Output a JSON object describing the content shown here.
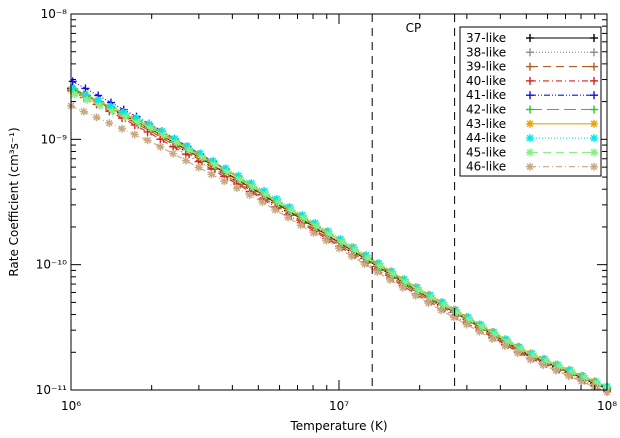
{
  "chart_data": {
    "type": "line",
    "title": "",
    "xlabel": "Temperature (K)",
    "ylabel": "Rate Coefficient (cm³s⁻¹)",
    "xscale": "log",
    "yscale": "log",
    "xlim": [
      1000000,
      100000000
    ],
    "ylim": [
      1e-11,
      1e-08
    ],
    "x_ticks": [
      {
        "value": 1000000,
        "label": "10⁶"
      },
      {
        "value": 10000000,
        "label": "10⁷"
      },
      {
        "value": 100000000,
        "label": "10⁸"
      }
    ],
    "y_ticks": [
      {
        "value": 1e-11,
        "label": "10⁻¹¹"
      },
      {
        "value": 1e-10,
        "label": "10⁻¹⁰"
      },
      {
        "value": 1e-09,
        "label": "10⁻⁹"
      },
      {
        "value": 1e-08,
        "label": "10⁻⁸"
      }
    ],
    "grid": false,
    "legend_position": "top-right",
    "annotations": [
      {
        "text": "CP",
        "type": "vertical-lines",
        "x": [
          13300000,
          27000000
        ],
        "style": "dashed",
        "color": "#000000"
      }
    ],
    "x": [
      1000000,
      2000000,
      5000000,
      10000000,
      20000000,
      50000000,
      100000000
    ],
    "series": [
      {
        "name": "37-like",
        "color": "#000000",
        "dash": "",
        "marker": "plus",
        "values": [
          2.55e-09,
          1.2e-09,
          3.8e-10,
          1.5e-10,
          6e-11,
          1.95e-11,
          1.02e-11
        ]
      },
      {
        "name": "38-like",
        "color": "#8c8c8c",
        "dash": "1,2",
        "marker": "plus",
        "values": [
          2.6e-09,
          1.22e-09,
          3.85e-10,
          1.53e-10,
          6.1e-11,
          1.98e-11,
          1.04e-11
        ]
      },
      {
        "name": "39-like",
        "color": "#b35a1e",
        "dash": "8,5",
        "marker": "plus",
        "values": [
          2.5e-09,
          1.15e-09,
          3.6e-10,
          1.44e-10,
          5.8e-11,
          1.9e-11,
          1e-11
        ]
      },
      {
        "name": "40-like",
        "color": "#d62020",
        "dash": "6,3,1,3",
        "marker": "plus",
        "values": [
          2.45e-09,
          1.1e-09,
          3.5e-10,
          1.4e-10,
          5.6e-11,
          1.85e-11,
          9.8e-12
        ]
      },
      {
        "name": "41-like",
        "color": "#1010e0",
        "dash": "6,2,1,2,1,2",
        "marker": "plus",
        "values": [
          2.95e-09,
          1.3e-09,
          4e-10,
          1.57e-10,
          6.2e-11,
          2e-11,
          1.05e-11
        ]
      },
      {
        "name": "42-like",
        "color": "#22cc22",
        "dash": "12,5",
        "marker": "plus",
        "values": [
          2.6e-09,
          1.24e-09,
          3.9e-10,
          1.55e-10,
          6.1e-11,
          1.98e-11,
          1.04e-11
        ]
      },
      {
        "name": "43-like",
        "color": "#f0a000",
        "dash": "",
        "marker": "asterisk",
        "values": [
          2.5e-09,
          1.26e-09,
          4e-10,
          1.58e-10,
          6.3e-11,
          2.02e-11,
          1.06e-11
        ]
      },
      {
        "name": "44-like",
        "color": "#00e8ee",
        "dash": "1,2",
        "marker": "asterisk",
        "values": [
          2.55e-09,
          1.3e-09,
          4.15e-10,
          1.63e-10,
          6.4e-11,
          2.05e-11,
          1.07e-11
        ]
      },
      {
        "name": "45-like",
        "color": "#88ee88",
        "dash": "8,5",
        "marker": "asterisk",
        "values": [
          2.35e-09,
          1.22e-09,
          3.95e-10,
          1.57e-10,
          6.2e-11,
          2e-11,
          1.05e-11
        ]
      },
      {
        "name": "46-like",
        "color": "#c8a882",
        "dash": "6,3,1,3",
        "marker": "asterisk",
        "values": [
          1.85e-09,
          9.5e-10,
          3.3e-10,
          1.35e-10,
          5.4e-11,
          1.8e-11,
          9.6e-12
        ]
      }
    ]
  }
}
